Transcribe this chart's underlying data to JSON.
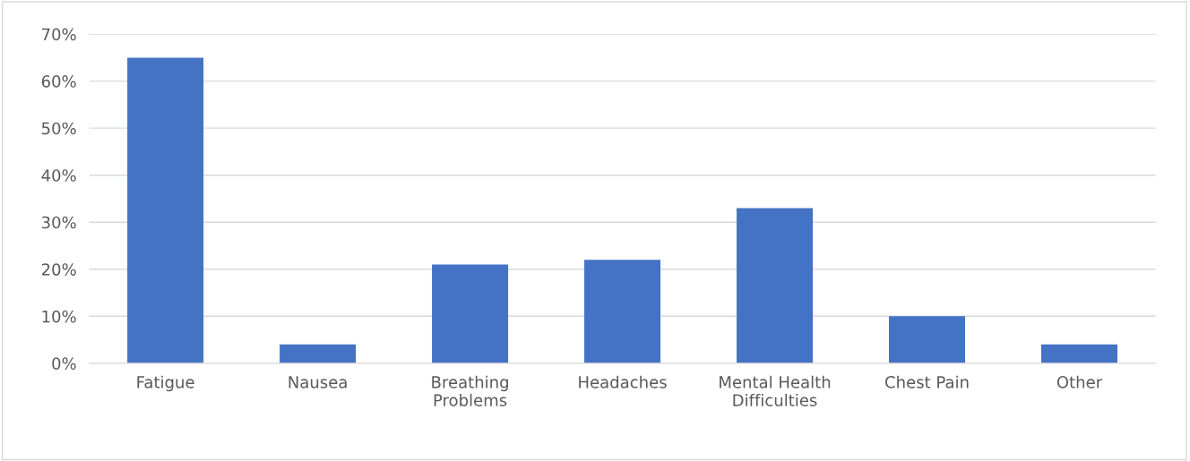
{
  "chart_data": {
    "type": "bar",
    "categories": [
      "Fatigue",
      "Nausea",
      "Breathing Problems",
      "Headaches",
      "Mental Health Difficulties",
      "Chest Pain",
      "Other"
    ],
    "values": [
      65,
      4,
      21,
      22,
      33,
      10,
      4
    ],
    "color": "#4472c4",
    "ylim": [
      0,
      70
    ],
    "yticks": [
      {
        "value": 0,
        "label": "0%"
      },
      {
        "value": 10,
        "label": "10%"
      },
      {
        "value": 20,
        "label": "20%"
      },
      {
        "value": 30,
        "label": "30%"
      },
      {
        "value": 40,
        "label": "40%"
      },
      {
        "value": 50,
        "label": "50%"
      },
      {
        "value": 60,
        "label": "60%"
      },
      {
        "value": 70,
        "label": "70%"
      }
    ],
    "grid": "y",
    "legend": false
  }
}
